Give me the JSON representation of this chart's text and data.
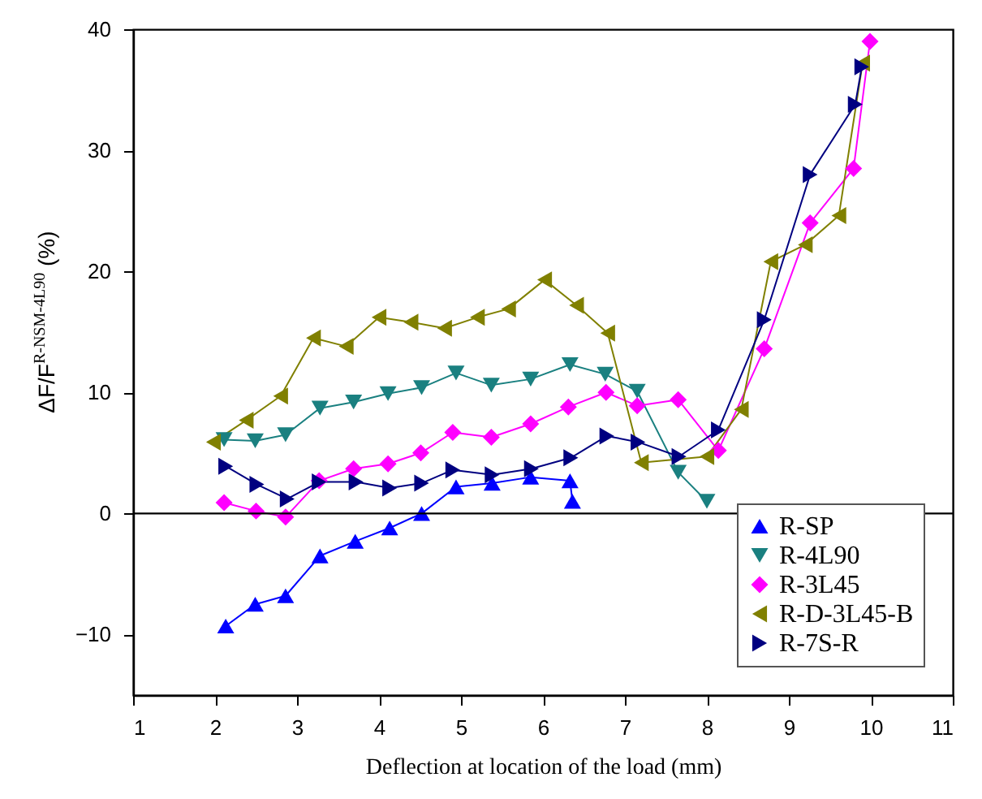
{
  "chart_data": {
    "type": "line",
    "xlabel": "Deflection at location of the load (mm)",
    "ylabel": "ΔF/F$^{R-NSM-4L90}$ (%)",
    "xlim": [
      1,
      11
    ],
    "xticks": [
      1,
      2,
      3,
      4,
      5,
      6,
      7,
      8,
      9,
      10,
      11
    ],
    "ylim": [
      -15,
      40
    ],
    "yticks": [
      -10,
      0,
      10,
      20,
      30,
      40
    ],
    "grid": false,
    "legend": "bottom right",
    "line_style": "solid",
    "ref_lines": [
      {
        "axis": "y",
        "value": 0,
        "color": "#000000"
      }
    ],
    "series": [
      {
        "name": "R-SP",
        "color": "#0000ff",
        "marker": "triangle-up",
        "x": [
          2.13,
          2.49,
          2.86,
          3.28,
          3.71,
          4.13,
          4.52,
          4.94,
          5.38,
          5.85,
          6.33,
          6.36
        ],
        "values": [
          -9.3,
          -7.5,
          -6.8,
          -3.5,
          -2.3,
          -1.2,
          0,
          2.2,
          2.5,
          3,
          2.7,
          1
        ]
      },
      {
        "name": "R-4L90",
        "color": "#1a8080",
        "marker": "triangle-down",
        "x": [
          2.11,
          2.49,
          2.86,
          3.28,
          3.69,
          4.11,
          4.52,
          4.94,
          5.37,
          5.85,
          6.33,
          6.76,
          7.15,
          7.65,
          8.0
        ],
        "values": [
          6.1,
          6.0,
          6.5,
          8.7,
          9.2,
          9.9,
          10.4,
          11.6,
          10.6,
          11.1,
          12.3,
          11.5,
          10.1,
          3.4,
          1
        ]
      },
      {
        "name": "R-3L45",
        "color": "#ff00ff",
        "marker": "diamond",
        "x": [
          2.11,
          2.5,
          2.86,
          3.27,
          3.69,
          4.11,
          4.51,
          4.9,
          5.37,
          5.85,
          6.31,
          6.77,
          7.15,
          7.65,
          8.14,
          8.7,
          9.26,
          9.79,
          9.99
        ],
        "values": [
          0.9,
          0.2,
          -0.3,
          2.7,
          3.7,
          4.1,
          5.0,
          6.7,
          6.3,
          7.4,
          8.8,
          10.0,
          8.9,
          9.4,
          5.2,
          13.6,
          24.0,
          28.5,
          39
        ]
      },
      {
        "name": "R-D-3L45-B",
        "color": "#808000",
        "marker": "triangle-left",
        "x": [
          1.98,
          2.38,
          2.8,
          3.2,
          3.6,
          4.0,
          4.39,
          4.8,
          5.2,
          5.58,
          6.02,
          6.41,
          6.79,
          7.2,
          8.0,
          8.42,
          8.78,
          9.2,
          9.61,
          9.9
        ],
        "values": [
          5.9,
          7.7,
          9.7,
          14.5,
          13.8,
          16.2,
          15.8,
          15.3,
          16.2,
          16.9,
          19.3,
          17.2,
          14.9,
          4.2,
          4.7,
          8.6,
          20.8,
          22.2,
          24.6,
          37.2
        ]
      },
      {
        "name": "R-7S-R",
        "color": "#000080",
        "marker": "triangle-right",
        "x": [
          2.13,
          2.51,
          2.88,
          3.27,
          3.72,
          4.13,
          4.52,
          4.9,
          5.38,
          5.86,
          6.34,
          6.78,
          7.16,
          7.66,
          8.14,
          8.7,
          9.26,
          9.81,
          9.89
        ],
        "values": [
          3.9,
          2.4,
          1.2,
          2.6,
          2.6,
          2.1,
          2.5,
          3.6,
          3.2,
          3.7,
          4.6,
          6.4,
          5.9,
          4.7,
          6.9,
          16.0,
          28.0,
          33.8,
          36.9
        ]
      }
    ]
  }
}
